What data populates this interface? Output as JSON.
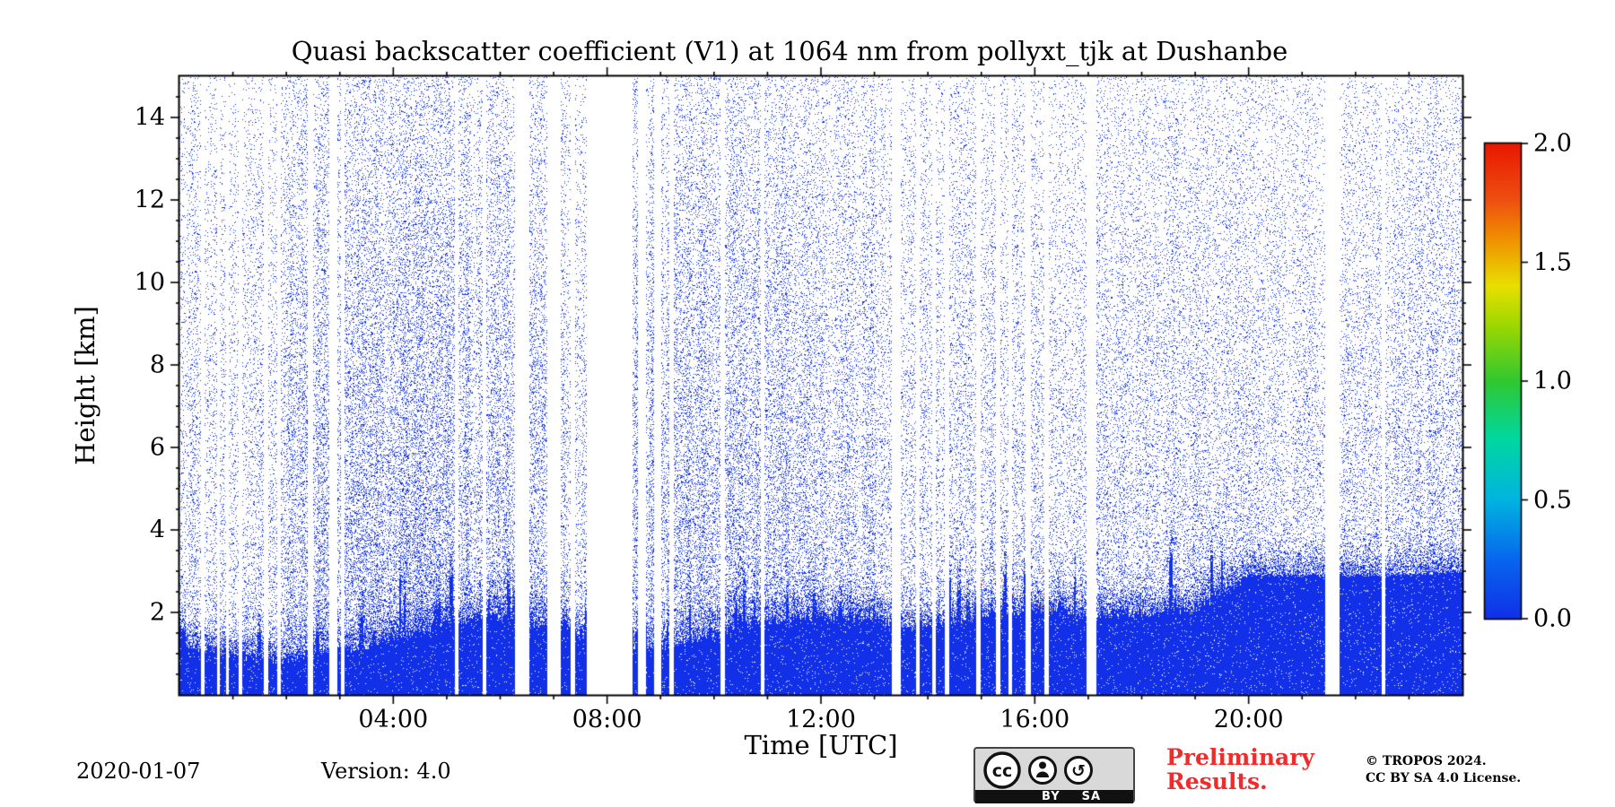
{
  "figure": {
    "date": "2020-01-07",
    "version": "Version: 4.0",
    "preliminary_line1": "Preliminary",
    "preliminary_line2": "Results.",
    "preliminary_color": "#f02b2b",
    "copyright_line1": "© TROPOS 2024.",
    "copyright_line2": "CC BY SA 4.0 License.",
    "badge": {
      "cc_text": "cc",
      "label_by": "BY",
      "label_sa": "SA"
    }
  },
  "chart_data": {
    "type": "heatmap",
    "title": "Quasi backscatter coefficient (V1) at 1064 nm from pollyxt_tjk at Dushanbe",
    "xlabel": "Time [UTC]",
    "ylabel": "Height [km]",
    "x_range_hours": [
      0,
      24
    ],
    "y_range_km": [
      0,
      15
    ],
    "x_ticks": [
      {
        "hour": 4,
        "label": "04:00"
      },
      {
        "hour": 8,
        "label": "08:00"
      },
      {
        "hour": 12,
        "label": "12:00"
      },
      {
        "hour": 16,
        "label": "16:00"
      },
      {
        "hour": 20,
        "label": "20:00"
      }
    ],
    "y_ticks": [
      {
        "km": 2,
        "label": "2"
      },
      {
        "km": 4,
        "label": "4"
      },
      {
        "km": 6,
        "label": "6"
      },
      {
        "km": 8,
        "label": "8"
      },
      {
        "km": 10,
        "label": "10"
      },
      {
        "km": 12,
        "label": "12"
      },
      {
        "km": 14,
        "label": "14"
      }
    ],
    "colorbar": {
      "range": [
        0,
        2
      ],
      "ticks": [
        {
          "value": 0.0,
          "label": "0.0"
        },
        {
          "value": 0.5,
          "label": "0.5"
        },
        {
          "value": 1.0,
          "label": "1.0"
        },
        {
          "value": 1.5,
          "label": "1.5"
        },
        {
          "value": 2.0,
          "label": "2.0"
        }
      ],
      "stops": [
        [
          0.0,
          "#1030e8"
        ],
        [
          0.12,
          "#0864ee"
        ],
        [
          0.25,
          "#00b4e0"
        ],
        [
          0.38,
          "#00d8a0"
        ],
        [
          0.5,
          "#30c830"
        ],
        [
          0.62,
          "#a0d800"
        ],
        [
          0.7,
          "#e8e000"
        ],
        [
          0.8,
          "#f09000"
        ],
        [
          0.88,
          "#ee5010"
        ],
        [
          1.0,
          "#e81800"
        ]
      ]
    },
    "point_color": "#1230e8",
    "accent_outlier_colors": [
      "#30b030",
      "#c8d400",
      "#f09000",
      "#e83010"
    ],
    "boundary_layer_km": [
      [
        0,
        1.4
      ],
      [
        0.5,
        1.2
      ],
      [
        1,
        1.1
      ],
      [
        1.5,
        1.0
      ],
      [
        2,
        1.0
      ],
      [
        2.5,
        1.1
      ],
      [
        3,
        1.2
      ],
      [
        3.5,
        1.3
      ],
      [
        4,
        1.5
      ],
      [
        4.5,
        1.7
      ],
      [
        5,
        1.9
      ],
      [
        5.5,
        2.0
      ],
      [
        6,
        2.0
      ],
      [
        6.5,
        1.9
      ],
      [
        7,
        1.8
      ],
      [
        7.5,
        1.6
      ],
      [
        8.5,
        1.3
      ],
      [
        9,
        1.3
      ],
      [
        9.5,
        1.4
      ],
      [
        10,
        1.6
      ],
      [
        10.5,
        1.8
      ],
      [
        11,
        1.9
      ],
      [
        12,
        2.0
      ],
      [
        13,
        2.0
      ],
      [
        13.4,
        1.75
      ],
      [
        14,
        1.8
      ],
      [
        14.5,
        1.9
      ],
      [
        15,
        2.0
      ],
      [
        15.5,
        2.1
      ],
      [
        16,
        2.2
      ],
      [
        16.5,
        2.2
      ],
      [
        17,
        2.1
      ],
      [
        18,
        2.1
      ],
      [
        19,
        2.2
      ],
      [
        19.5,
        2.6
      ],
      [
        20,
        3.0
      ],
      [
        21,
        3.0
      ],
      [
        22,
        3.0
      ],
      [
        23,
        3.0
      ],
      [
        24,
        3.1
      ]
    ],
    "speckle_amplitude": [
      [
        0,
        0.3
      ],
      [
        0.5,
        0.25
      ],
      [
        1,
        0.22
      ],
      [
        1.5,
        0.28
      ],
      [
        2,
        0.38
      ],
      [
        2.5,
        0.45
      ],
      [
        3,
        0.5
      ],
      [
        3.5,
        0.55
      ],
      [
        4,
        0.58
      ],
      [
        4.5,
        0.55
      ],
      [
        5,
        0.5
      ],
      [
        5.5,
        0.48
      ],
      [
        6,
        0.45
      ],
      [
        6.7,
        0.4
      ],
      [
        7,
        0.35
      ],
      [
        7.5,
        0.3
      ],
      [
        8.5,
        0.45
      ],
      [
        9,
        0.55
      ],
      [
        9.5,
        0.52
      ],
      [
        10,
        0.48
      ],
      [
        10.5,
        0.45
      ],
      [
        11,
        0.42
      ],
      [
        11.5,
        0.4
      ],
      [
        12,
        0.38
      ],
      [
        12.5,
        0.36
      ],
      [
        13,
        0.33
      ],
      [
        13.5,
        0.3
      ],
      [
        14,
        0.28
      ],
      [
        14.5,
        0.3
      ],
      [
        15,
        0.32
      ],
      [
        15.5,
        0.3
      ],
      [
        16,
        0.26
      ],
      [
        16.5,
        0.24
      ],
      [
        17,
        0.3
      ],
      [
        17.5,
        0.32
      ],
      [
        18,
        0.3
      ],
      [
        18.5,
        0.32
      ],
      [
        19,
        0.35
      ],
      [
        19.5,
        0.3
      ],
      [
        20,
        0.26
      ],
      [
        20.5,
        0.24
      ],
      [
        21,
        0.26
      ],
      [
        21.5,
        0.3
      ],
      [
        22,
        0.32
      ],
      [
        22.5,
        0.34
      ],
      [
        23,
        0.36
      ],
      [
        23.5,
        0.34
      ],
      [
        24,
        0.33
      ]
    ],
    "data_gaps_hours": [
      [
        0.4,
        0.47
      ],
      [
        0.7,
        0.76
      ],
      [
        0.88,
        0.93
      ],
      [
        1.1,
        1.18
      ],
      [
        1.58,
        1.66
      ],
      [
        1.83,
        1.89
      ],
      [
        2.4,
        2.5
      ],
      [
        2.8,
        2.96
      ],
      [
        3.02,
        3.08
      ],
      [
        5.15,
        5.22
      ],
      [
        5.68,
        5.74
      ],
      [
        6.28,
        6.55
      ],
      [
        6.88,
        7.14
      ],
      [
        7.32,
        7.4
      ],
      [
        7.62,
        8.48
      ],
      [
        8.58,
        8.72
      ],
      [
        8.88,
        9.02
      ],
      [
        9.16,
        9.24
      ],
      [
        10.12,
        10.2
      ],
      [
        10.87,
        10.95
      ],
      [
        13.32,
        13.5
      ],
      [
        13.78,
        13.85
      ],
      [
        14.08,
        14.15
      ],
      [
        14.32,
        14.4
      ],
      [
        14.9,
        14.99
      ],
      [
        15.28,
        15.36
      ],
      [
        15.5,
        15.58
      ],
      [
        15.83,
        15.92
      ],
      [
        16.18,
        16.26
      ],
      [
        16.96,
        17.16
      ],
      [
        21.44,
        21.7
      ],
      [
        22.49,
        22.55
      ]
    ],
    "outlier_window_hours": [
      13.5,
      17.0
    ],
    "seed": 20200107
  }
}
